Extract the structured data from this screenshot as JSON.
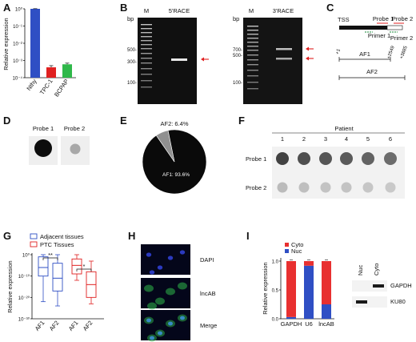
{
  "panels": {
    "A": {
      "label": "A"
    },
    "B": {
      "label": "B",
      "unit": "bp",
      "m": "M",
      "race5": "5'RACE",
      "race3": "3'RACE",
      "ladder_left": [
        "500-",
        "300-",
        "100-"
      ],
      "ladder_right": [
        "700-",
        "500-",
        "100-"
      ]
    },
    "C": {
      "label": "C",
      "tss": "TSS",
      "probe1": "Probe 1",
      "probe2": "Probe 2",
      "primer1": "Primer 1",
      "primer2": "Primer 2",
      "plus1": "+1",
      "p2549": "+2549",
      "p3885": "+3885",
      "af1": "AF1",
      "af2": "AF2"
    },
    "D": {
      "label": "D",
      "probe1": "Probe 1",
      "probe2": "Probe 2"
    },
    "E": {
      "label": "E"
    },
    "F": {
      "label": "F",
      "patient": "Patient",
      "numbers": [
        "1",
        "2",
        "3",
        "4",
        "5",
        "6"
      ],
      "probe1": "Probe 1",
      "probe2": "Probe 2"
    },
    "G": {
      "label": "G",
      "legend": [
        "Adjacent tissues",
        "PTC Tissues"
      ],
      "sig": [
        "**",
        "*"
      ]
    },
    "H": {
      "label": "H",
      "rows": [
        "DAPI",
        "lncAB",
        "Merge"
      ]
    },
    "I": {
      "label": "I",
      "legend": [
        "Cyto",
        "Nuc"
      ],
      "blot_cols": [
        "Nuc",
        "Cyto"
      ],
      "blot_rows": [
        "GAPDH",
        "KU80"
      ]
    }
  },
  "colors": {
    "blue": "#2f4fc4",
    "red": "#e02020",
    "green": "#2fb84a",
    "cyto": "#e83030",
    "nuc": "#2f4fc4",
    "gray": "#909090"
  },
  "chart_data": [
    {
      "type": "bar",
      "panel": "A",
      "categories": [
        "Nthy",
        "TPC-1",
        "BCPAP"
      ],
      "values": [
        1.0,
        0.0004,
        0.0006
      ],
      "errors": [
        0.02,
        0.0001,
        0.0001
      ],
      "ylabel": "Relative expression",
      "ylim": [
        0.0001,
        1
      ],
      "yscale": "log",
      "yticks": [
        "10⁰",
        "10⁻¹",
        "10⁻²",
        "10⁻³",
        "10⁻⁴"
      ]
    },
    {
      "type": "pie",
      "panel": "E",
      "labels": [
        "AF1: 93.6%",
        "AF2: 6.4%"
      ],
      "values": [
        93.6,
        6.4
      ]
    },
    {
      "type": "box",
      "panel": "G",
      "categories": [
        "AF1",
        "AF2",
        "AF1",
        "AF2"
      ],
      "ylabel": "Relative expression",
      "yscale": "log",
      "yticks": [
        "10⁰",
        "10⁻¹⁰",
        "10⁻²⁰",
        "10⁻³⁰"
      ],
      "boxes": [
        {
          "group": "Adjacent tissues",
          "min": -22,
          "q1": -10,
          "median": -6,
          "q3": -1,
          "max": 0
        },
        {
          "group": "Adjacent tissues",
          "min": -24,
          "q1": -17,
          "median": -11,
          "q3": -4,
          "max": 0
        },
        {
          "group": "PTC Tissues",
          "min": -12,
          "q1": -9,
          "median": -5,
          "q3": -2,
          "max": 0
        },
        {
          "group": "PTC Tissues",
          "min": -23,
          "q1": -20,
          "median": -14,
          "q3": -8,
          "max": -3
        }
      ]
    },
    {
      "type": "bar",
      "panel": "I",
      "stacked": true,
      "categories": [
        "GAPDH",
        "U6",
        "lncAB"
      ],
      "series": [
        {
          "name": "Nuc",
          "values": [
            0.03,
            0.92,
            0.25
          ]
        },
        {
          "name": "Cyto",
          "values": [
            0.97,
            0.08,
            0.75
          ]
        }
      ],
      "ylabel": "Relative expression",
      "ylim": [
        0,
        1.0
      ],
      "yticks": [
        "0.0",
        "0.5",
        "1.0"
      ]
    }
  ]
}
